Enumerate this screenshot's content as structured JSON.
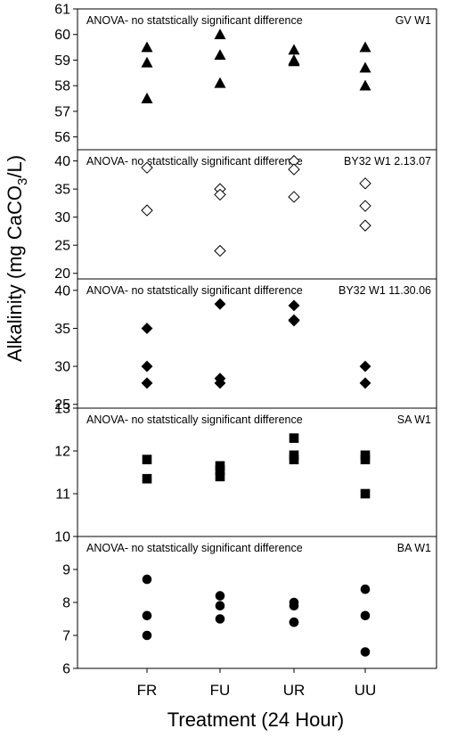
{
  "chart_data": {
    "type": "scatter",
    "xlabel": "Treatment (24 Hour)",
    "ylabel_main": "Alkalinity (mg CaCO",
    "ylabel_sub": "3",
    "ylabel_end": "/L)",
    "categories": [
      "FR",
      "FU",
      "UR",
      "UU"
    ],
    "grid": false,
    "panels": [
      {
        "annotation": "ANOVA- no statstically significant difference",
        "label": "GV W1",
        "marker": "triangle",
        "fill": "#000000",
        "ylim": [
          55.5,
          61
        ],
        "yticks": [
          56,
          57,
          58,
          59,
          60,
          61
        ],
        "points": {
          "FR": [
            59.5,
            58.9,
            57.5
          ],
          "FU": [
            60.0,
            59.2,
            58.1
          ],
          "UR": [
            59.4,
            59.0,
            58.95
          ],
          "UU": [
            59.5,
            58.7,
            58.0
          ]
        }
      },
      {
        "annotation": "ANOVA- no statstically significant difference",
        "label": "BY32 W1 2.13.07",
        "marker": "diamond",
        "fill": "#ffffff",
        "ylim": [
          19,
          42
        ],
        "yticks": [
          20,
          25,
          30,
          35,
          40
        ],
        "points": {
          "FR": [
            38.8,
            31.2
          ],
          "FU": [
            35.0,
            34.0,
            24.0
          ],
          "UR": [
            40.0,
            38.5,
            33.6
          ],
          "UU": [
            36.0,
            32.0,
            28.5
          ]
        }
      },
      {
        "annotation": "ANOVA- no statstically significant difference",
        "label": "BY32 W1 11.30.06",
        "marker": "diamond",
        "fill": "#000000",
        "ylim": [
          24.5,
          41.5
        ],
        "yticks": [
          25,
          30,
          35,
          40
        ],
        "points": {
          "FR": [
            35.0,
            30.0,
            27.8
          ],
          "FU": [
            38.2,
            28.4,
            27.8
          ],
          "UR": [
            38.0,
            36.0,
            36.1
          ],
          "UU": [
            30.0,
            27.8
          ]
        }
      },
      {
        "annotation": "ANOVA- no statstically significant difference",
        "label": "SA W1",
        "marker": "square",
        "fill": "#000000",
        "ylim": [
          10,
          13
        ],
        "yticks": [
          10,
          11,
          12,
          13
        ],
        "points": {
          "FR": [
            11.8,
            11.35
          ],
          "FU": [
            11.65,
            11.55,
            11.4
          ],
          "UR": [
            12.3,
            11.9,
            11.8
          ],
          "UU": [
            11.9,
            11.8,
            11.0
          ]
        }
      },
      {
        "annotation": "ANOVA- no statstically significant difference",
        "label": "BA W1",
        "marker": "circle",
        "fill": "#000000",
        "ylim": [
          6,
          10
        ],
        "yticks": [
          6,
          7,
          8,
          9
        ],
        "points": {
          "FR": [
            8.7,
            7.6,
            7.0
          ],
          "FU": [
            8.2,
            7.9,
            7.5
          ],
          "UR": [
            8.0,
            7.9,
            7.4,
            7.4
          ],
          "UU": [
            8.4,
            7.6,
            6.5
          ]
        }
      }
    ]
  }
}
